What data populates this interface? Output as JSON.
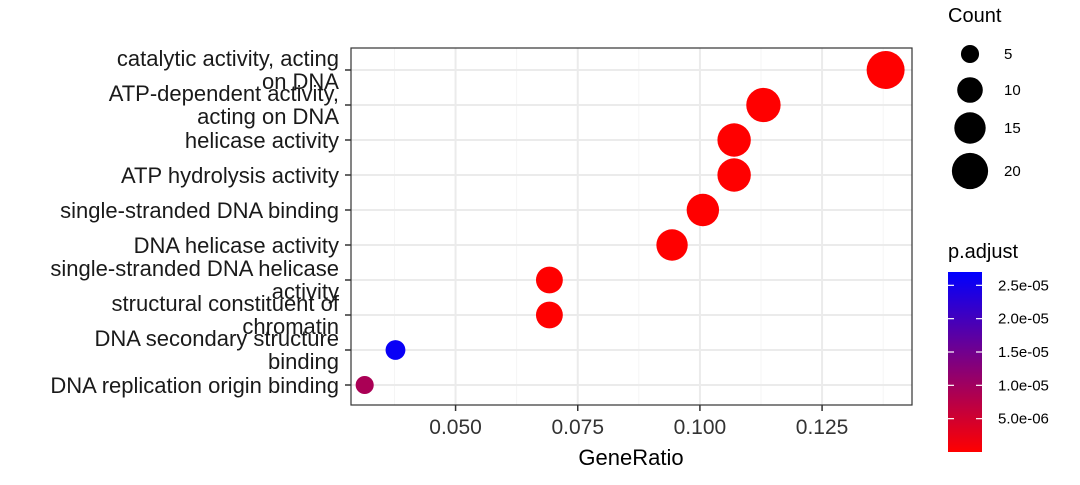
{
  "chart_data": {
    "type": "scatter",
    "xlabel": "GeneRatio",
    "ylabel": "",
    "xlim": [
      0.0286,
      0.1434
    ],
    "x_ticks": [
      0.05,
      0.075,
      0.1,
      0.125
    ],
    "x_tick_labels": [
      "0.050",
      "0.075",
      "0.100",
      "0.125"
    ],
    "grid": true,
    "categories": [
      "catalytic activity, acting\non DNA",
      "ATP-dependent activity,\nacting on DNA",
      "helicase activity",
      "ATP hydrolysis activity",
      "single-stranded DNA binding",
      "DNA helicase activity",
      "single-stranded DNA helicase\nactivity",
      "structural constituent of\nchromatin",
      "DNA secondary structure\nbinding",
      "DNA replication origin binding"
    ],
    "points": [
      {
        "category": "catalytic activity, acting\non DNA",
        "x": 0.138,
        "count": 22,
        "p_adjust": 1e-08
      },
      {
        "category": "ATP-dependent activity,\nacting on DNA",
        "x": 0.113,
        "count": 18,
        "p_adjust": 1e-08
      },
      {
        "category": "helicase activity",
        "x": 0.107,
        "count": 17,
        "p_adjust": 1e-08
      },
      {
        "category": "ATP hydrolysis activity",
        "x": 0.107,
        "count": 17,
        "p_adjust": 1e-08
      },
      {
        "category": "single-stranded DNA binding",
        "x": 0.1006,
        "count": 16,
        "p_adjust": 1e-08
      },
      {
        "category": "DNA helicase activity",
        "x": 0.0943,
        "count": 15,
        "p_adjust": 1e-08
      },
      {
        "category": "single-stranded DNA helicase\nactivity",
        "x": 0.0692,
        "count": 11,
        "p_adjust": 1e-08
      },
      {
        "category": "structural constituent of\nchromatin",
        "x": 0.0692,
        "count": 11,
        "p_adjust": 1e-08
      },
      {
        "category": "DNA secondary structure\nbinding",
        "x": 0.0377,
        "count": 6,
        "p_adjust": 2.6e-05
      },
      {
        "category": "DNA replication origin binding",
        "x": 0.0314,
        "count": 5,
        "p_adjust": 9e-06
      }
    ],
    "legend_size": {
      "title": "Count",
      "values": [
        5,
        10,
        15,
        20
      ],
      "labels": [
        "5",
        "10",
        "15",
        "20"
      ],
      "position": "right-top"
    },
    "legend_color": {
      "title": "p.adjust",
      "range": [
        0,
        2.7e-05
      ],
      "ticks": [
        2.5e-05,
        2e-05,
        1.5e-05,
        1e-05,
        5e-06
      ],
      "tick_labels": [
        "2.5e-05",
        "2.0e-05",
        "1.5e-05",
        "1.0e-05",
        "5.0e-06"
      ],
      "low_color": "#FF0000",
      "high_color": "#0000FF",
      "position": "right-bottom"
    },
    "colors": {
      "panel_border": "#333333",
      "grid_major": "#ebebeb",
      "grid_minor": "#f5f5f5",
      "tick": "#333333"
    }
  }
}
